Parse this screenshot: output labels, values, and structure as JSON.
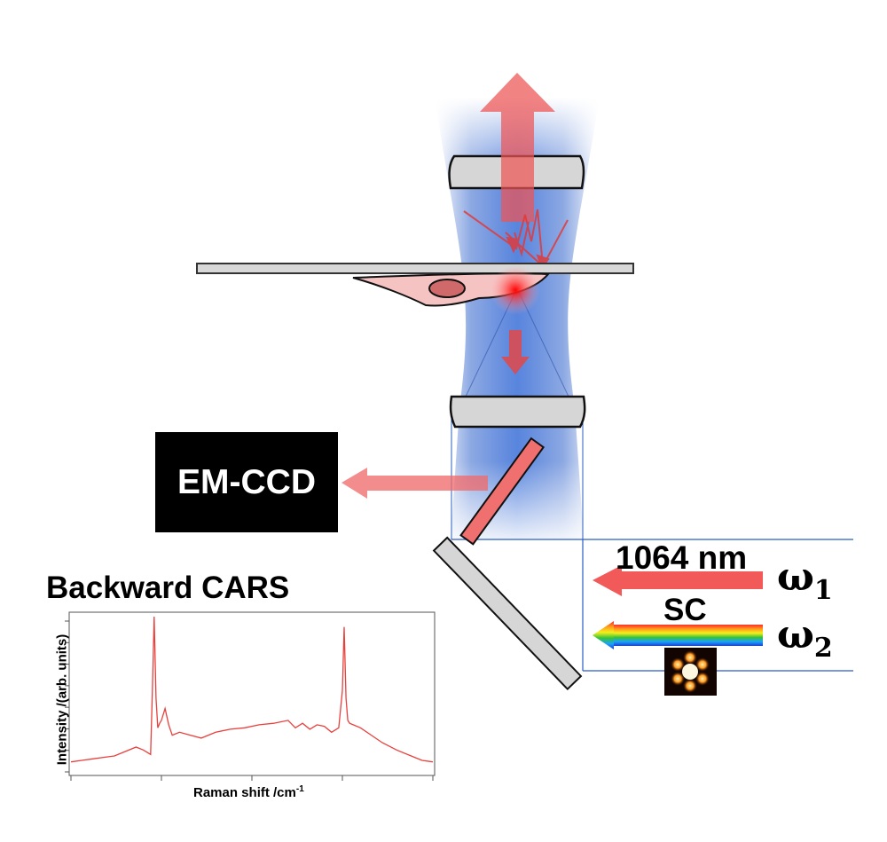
{
  "detector": {
    "label": "EM-CCD"
  },
  "pump": {
    "label": "1064 nm",
    "omega": "ω",
    "omega_sub": "1",
    "color": "#f25a5a"
  },
  "stokes": {
    "label": "SC",
    "omega": "ω",
    "omega_sub": "2"
  },
  "spectrum": {
    "title": "Backward CARS"
  },
  "chart_data": {
    "type": "line",
    "title": "Backward CARS",
    "xlabel": "Raman shift /cm",
    "xlabel_sup": "-1",
    "ylabel": "Intensity /(arb. units)",
    "x_ticks": 5,
    "y_ticks": 8,
    "line_color": "#e8403c",
    "series": [
      {
        "x": [
          0,
          0.03,
          0.06,
          0.09,
          0.12,
          0.15,
          0.18,
          0.2,
          0.22,
          0.225,
          0.23,
          0.235,
          0.24,
          0.245,
          0.25,
          0.26,
          0.27,
          0.28,
          0.3,
          0.33,
          0.36,
          0.4,
          0.44,
          0.48,
          0.52,
          0.56,
          0.6,
          0.62,
          0.64,
          0.66,
          0.68,
          0.7,
          0.72,
          0.74,
          0.75,
          0.755,
          0.76,
          0.765,
          0.77,
          0.78,
          0.8,
          0.83,
          0.86,
          0.9,
          0.94,
          0.97,
          1.0
        ],
        "y": [
          0.02,
          0.03,
          0.04,
          0.05,
          0.06,
          0.09,
          0.12,
          0.1,
          0.07,
          0.5,
          1.0,
          0.45,
          0.25,
          0.28,
          0.3,
          0.38,
          0.27,
          0.2,
          0.22,
          0.2,
          0.18,
          0.22,
          0.24,
          0.25,
          0.27,
          0.28,
          0.3,
          0.25,
          0.28,
          0.24,
          0.27,
          0.26,
          0.22,
          0.25,
          0.5,
          0.93,
          0.45,
          0.3,
          0.28,
          0.27,
          0.25,
          0.2,
          0.15,
          0.1,
          0.06,
          0.03,
          0.02
        ]
      }
    ]
  }
}
